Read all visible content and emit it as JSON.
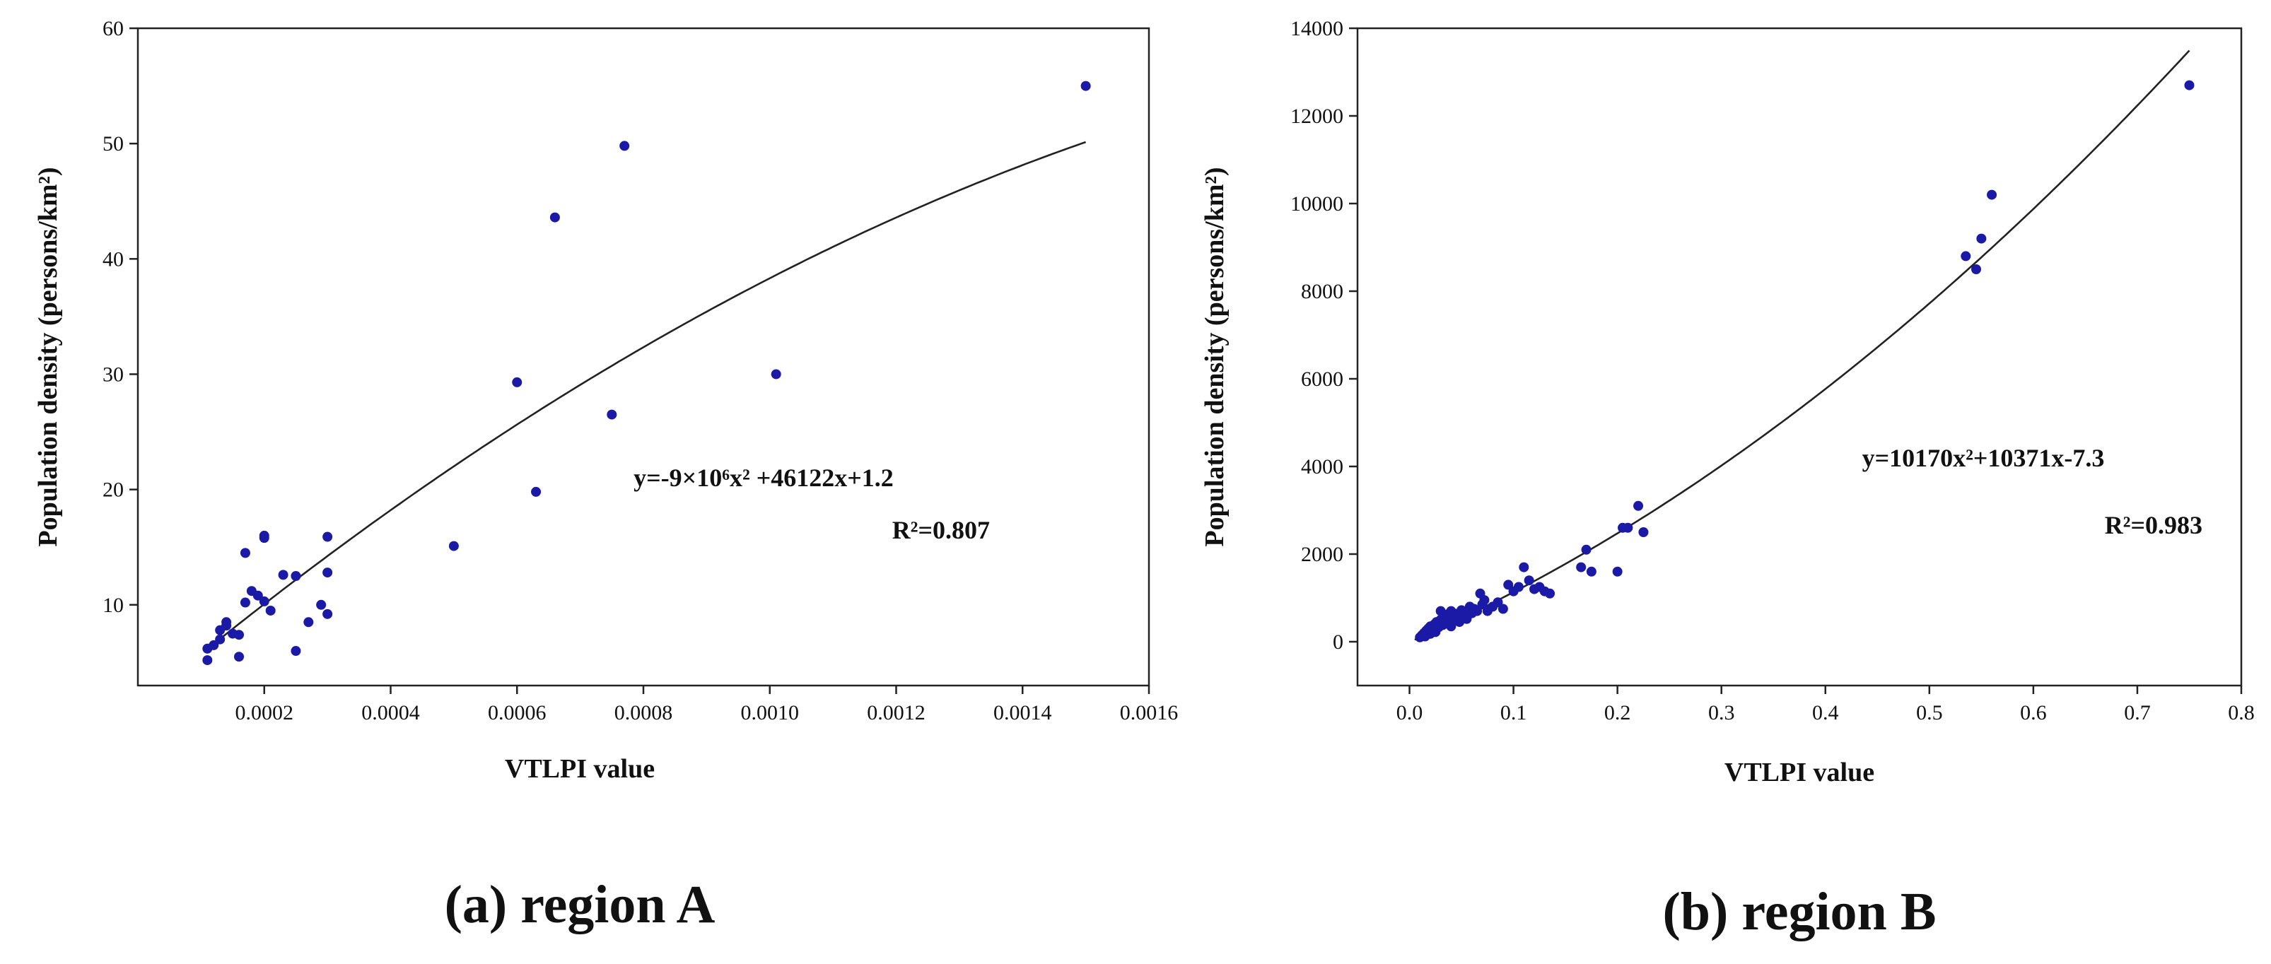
{
  "chart_data": [
    {
      "type": "scatter",
      "caption": "(a) region A",
      "xlabel": "VTLPI value",
      "ylabel": "Population density (persons/km²)",
      "xlim": [
        0,
        0.0016
      ],
      "ylim": [
        3,
        60
      ],
      "x_ticks": [
        0.0002,
        0.0004,
        0.0006,
        0.0008,
        0.001,
        0.0012,
        0.0014,
        0.0016
      ],
      "x_tick_labels": [
        "0.0002",
        "0.0004",
        "0.0006",
        "0.0008",
        "0.0010",
        "0.0012",
        "0.0014",
        "0.0016"
      ],
      "y_ticks": [
        10,
        20,
        30,
        40,
        50,
        60
      ],
      "y_tick_labels": [
        "10",
        "20",
        "30",
        "40",
        "50",
        "60"
      ],
      "grid": false,
      "marker_color": "#1a1aa6",
      "fit_color": "#222222",
      "points": [
        [
          0.00011,
          5.2
        ],
        [
          0.00011,
          6.2
        ],
        [
          0.00012,
          6.5
        ],
        [
          0.00013,
          7.0
        ],
        [
          0.00013,
          7.8
        ],
        [
          0.00014,
          8.5
        ],
        [
          0.00014,
          8.2
        ],
        [
          0.00015,
          7.5
        ],
        [
          0.00016,
          7.4
        ],
        [
          0.00016,
          5.5
        ],
        [
          0.00017,
          14.5
        ],
        [
          0.00017,
          10.2
        ],
        [
          0.00018,
          11.2
        ],
        [
          0.00019,
          10.8
        ],
        [
          0.0002,
          16.0
        ],
        [
          0.0002,
          15.8
        ],
        [
          0.0002,
          10.3
        ],
        [
          0.00021,
          9.5
        ],
        [
          0.00023,
          12.6
        ],
        [
          0.00025,
          12.5
        ],
        [
          0.00025,
          6.0
        ],
        [
          0.00027,
          8.5
        ],
        [
          0.00029,
          10.0
        ],
        [
          0.0003,
          9.2
        ],
        [
          0.0003,
          12.8
        ],
        [
          0.0003,
          15.9
        ],
        [
          0.0005,
          15.1
        ],
        [
          0.0006,
          29.3
        ],
        [
          0.00063,
          19.8
        ],
        [
          0.00066,
          43.6
        ],
        [
          0.00075,
          26.5
        ],
        [
          0.00077,
          49.8
        ],
        [
          0.00101,
          30.0
        ],
        [
          0.0015,
          55.0
        ]
      ],
      "fit": {
        "a": -9000000,
        "b": 46122,
        "c": 1.2,
        "x_from": 0.00011,
        "x_to": 0.0015
      },
      "annotations": [
        "y=-9×10⁶x² +46122x+1.2",
        "R²=0.807"
      ]
    },
    {
      "type": "scatter",
      "caption": "(b) region B",
      "xlabel": "VTLPI value",
      "ylabel": "Population density (persons/km²)",
      "xlim": [
        -0.05,
        0.8
      ],
      "ylim": [
        -1000,
        14000
      ],
      "x_ticks": [
        0,
        0.1,
        0.2,
        0.3,
        0.4,
        0.5,
        0.6,
        0.7,
        0.8
      ],
      "x_tick_labels": [
        "0.0",
        "0.1",
        "0.2",
        "0.3",
        "0.4",
        "0.5",
        "0.6",
        "0.7",
        "0.8"
      ],
      "y_ticks": [
        0,
        2000,
        4000,
        6000,
        8000,
        10000,
        12000,
        14000
      ],
      "y_tick_labels": [
        "0",
        "2000",
        "4000",
        "6000",
        "8000",
        "10000",
        "12000",
        "14000"
      ],
      "grid": false,
      "marker_color": "#1a1aa6",
      "fit_color": "#222222",
      "points": [
        [
          0.01,
          100
        ],
        [
          0.012,
          150
        ],
        [
          0.014,
          200
        ],
        [
          0.015,
          120
        ],
        [
          0.016,
          250
        ],
        [
          0.018,
          300
        ],
        [
          0.02,
          180
        ],
        [
          0.02,
          350
        ],
        [
          0.022,
          280
        ],
        [
          0.024,
          400
        ],
        [
          0.025,
          220
        ],
        [
          0.026,
          450
        ],
        [
          0.028,
          330
        ],
        [
          0.03,
          500
        ],
        [
          0.03,
          700
        ],
        [
          0.032,
          380
        ],
        [
          0.034,
          560
        ],
        [
          0.035,
          420
        ],
        [
          0.036,
          620
        ],
        [
          0.038,
          480
        ],
        [
          0.04,
          700
        ],
        [
          0.04,
          350
        ],
        [
          0.042,
          520
        ],
        [
          0.044,
          640
        ],
        [
          0.045,
          580
        ],
        [
          0.048,
          450
        ],
        [
          0.05,
          720
        ],
        [
          0.05,
          600
        ],
        [
          0.052,
          680
        ],
        [
          0.055,
          520
        ],
        [
          0.058,
          800
        ],
        [
          0.06,
          650
        ],
        [
          0.062,
          750
        ],
        [
          0.065,
          700
        ],
        [
          0.068,
          1100
        ],
        [
          0.07,
          850
        ],
        [
          0.072,
          950
        ],
        [
          0.075,
          700
        ],
        [
          0.08,
          800
        ],
        [
          0.085,
          900
        ],
        [
          0.09,
          750
        ],
        [
          0.095,
          1300
        ],
        [
          0.1,
          1150
        ],
        [
          0.105,
          1250
        ],
        [
          0.11,
          1700
        ],
        [
          0.115,
          1400
        ],
        [
          0.12,
          1200
        ],
        [
          0.125,
          1250
        ],
        [
          0.13,
          1150
        ],
        [
          0.135,
          1100
        ],
        [
          0.165,
          1700
        ],
        [
          0.17,
          2100
        ],
        [
          0.175,
          1600
        ],
        [
          0.2,
          1600
        ],
        [
          0.205,
          2600
        ],
        [
          0.21,
          2600
        ],
        [
          0.22,
          3100
        ],
        [
          0.225,
          2500
        ],
        [
          0.535,
          8800
        ],
        [
          0.545,
          8500
        ],
        [
          0.55,
          9200
        ],
        [
          0.56,
          10200
        ],
        [
          0.75,
          12700
        ]
      ],
      "fit": {
        "a": 10170,
        "b": 10371,
        "c": -7.3,
        "x_from": 0.005,
        "x_to": 0.75
      },
      "annotations": [
        "y=10170x²+10371x-7.3",
        "R²=0.983"
      ]
    }
  ]
}
